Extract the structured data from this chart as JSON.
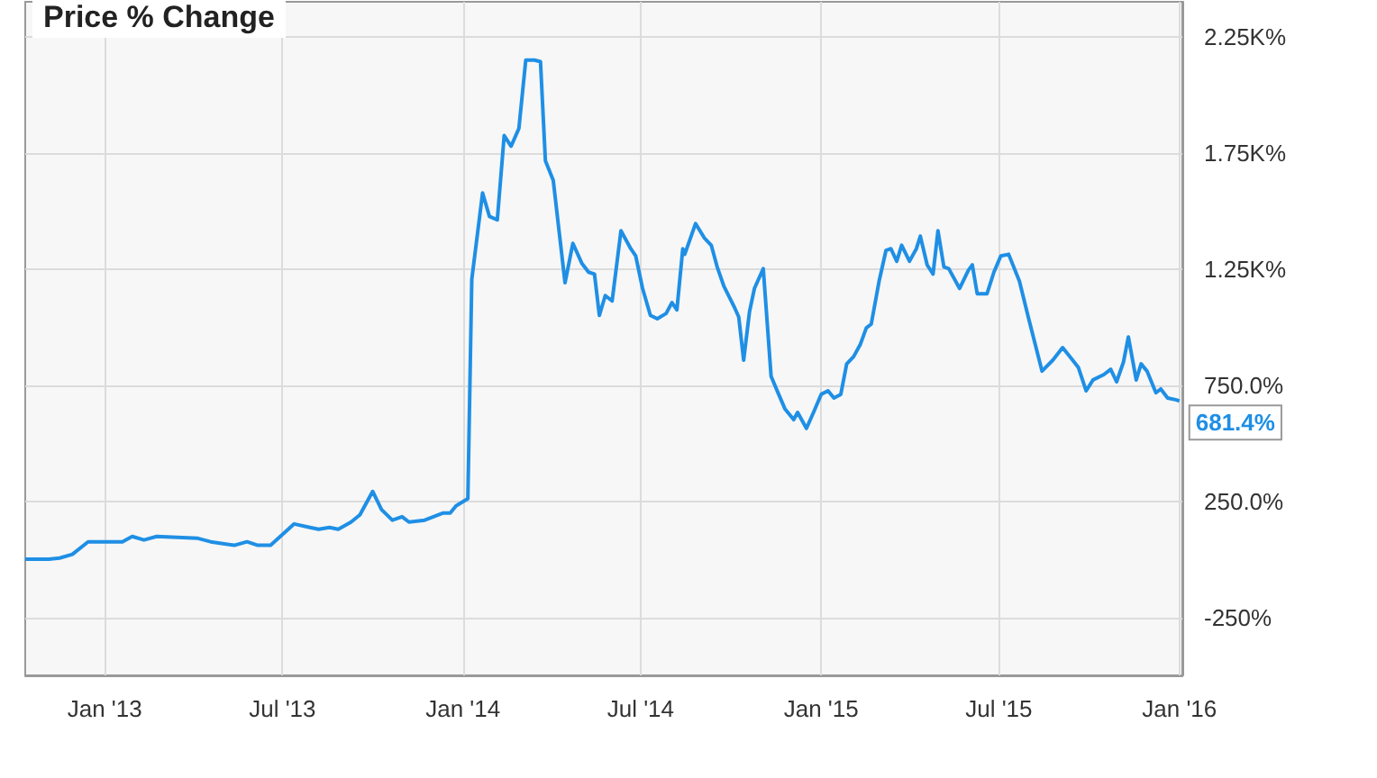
{
  "chart_data": {
    "type": "line",
    "title": "Price % Change",
    "x": [
      "2012-10-12",
      "2012-11-05",
      "2012-11-16",
      "2012-11-29",
      "2012-12-15",
      "2013-01-19",
      "2013-01-29",
      "2013-02-10",
      "2013-02-23",
      "2013-04-06",
      "2013-04-19",
      "2013-05-13",
      "2013-05-26",
      "2013-06-06",
      "2013-06-19",
      "2013-07-07",
      "2013-07-13",
      "2013-07-29",
      "2013-08-07",
      "2013-08-18",
      "2013-08-27",
      "2013-09-09",
      "2013-09-18",
      "2013-10-01",
      "2013-10-10",
      "2013-10-21",
      "2013-10-31",
      "2013-11-07",
      "2013-11-23",
      "2013-12-12",
      "2013-12-19",
      "2013-12-25",
      "2014-01-06",
      "2014-01-10",
      "2014-01-21",
      "2014-01-28",
      "2014-02-05",
      "2014-02-12",
      "2014-02-19",
      "2014-02-27",
      "2014-03-06",
      "2014-03-15",
      "2014-03-21",
      "2014-03-26",
      "2014-04-03",
      "2014-04-15",
      "2014-04-23",
      "2014-05-02",
      "2014-05-09",
      "2014-05-15",
      "2014-05-20",
      "2014-05-26",
      "2014-06-02",
      "2014-06-11",
      "2014-06-21",
      "2014-06-26",
      "2014-07-03",
      "2014-07-11",
      "2014-07-18",
      "2014-07-27",
      "2014-08-02",
      "2014-08-07",
      "2014-08-13",
      "2014-08-15",
      "2014-08-26",
      "2014-09-04",
      "2014-09-11",
      "2014-09-17",
      "2014-09-24",
      "2014-10-05",
      "2014-10-09",
      "2014-10-14",
      "2014-10-20",
      "2014-10-25",
      "2014-11-03",
      "2014-11-11",
      "2014-11-18",
      "2014-11-25",
      "2014-12-04",
      "2014-12-08",
      "2014-12-17",
      "2014-12-25",
      "2015-01-01",
      "2015-01-08",
      "2015-01-14",
      "2015-01-21",
      "2015-01-27",
      "2015-02-03",
      "2015-02-10",
      "2015-02-16",
      "2015-02-21",
      "2015-03-01",
      "2015-03-08",
      "2015-03-13",
      "2015-03-19",
      "2015-03-24",
      "2015-04-01",
      "2015-04-08",
      "2015-04-12",
      "2015-04-19",
      "2015-04-25",
      "2015-04-30",
      "2015-05-06",
      "2015-05-11",
      "2015-05-22",
      "2015-05-31",
      "2015-06-04",
      "2015-06-09",
      "2015-06-19",
      "2015-06-26",
      "2015-07-03",
      "2015-07-11",
      "2015-07-22",
      "2015-07-31",
      "2015-08-14",
      "2015-08-25",
      "2015-09-04",
      "2015-09-13",
      "2015-09-20",
      "2015-09-28",
      "2015-10-05",
      "2015-10-16",
      "2015-10-23",
      "2015-10-29",
      "2015-11-05",
      "2015-11-10",
      "2015-11-18",
      "2015-11-23",
      "2015-11-29",
      "2015-12-08",
      "2015-12-13",
      "2015-12-20",
      "2015-12-29",
      "2016-01-01"
    ],
    "series": [
      {
        "color": "#1f8fe5",
        "values": [
          0,
          0,
          5,
          21,
          75,
          75,
          98,
          83,
          98,
          90,
          75,
          60,
          75,
          60,
          60,
          129,
          152,
          137,
          129,
          137,
          129,
          160,
          191,
          292,
          214,
          168,
          183,
          160,
          168,
          199,
          199,
          230,
          261,
          1205,
          1577,
          1476,
          1461,
          1824,
          1778,
          1855,
          2149,
          2149,
          2142,
          1716,
          1631,
          1190,
          1360,
          1275,
          1236,
          1228,
          1050,
          1135,
          1112,
          1414,
          1337,
          1306,
          1166,
          1050,
          1035,
          1058,
          1105,
          1074,
          1337,
          1313,
          1445,
          1383,
          1352,
          1259,
          1174,
          1081,
          1043,
          857,
          1066,
          1166,
          1251,
          787,
          717,
          648,
          601,
          632,
          563,
          640,
          710,
          725,
          694,
          710,
          841,
          872,
          926,
          996,
          1012,
          1197,
          1329,
          1337,
          1283,
          1352,
          1283,
          1337,
          1391,
          1267,
          1228,
          1414,
          1259,
          1251,
          1166,
          1244,
          1267,
          1143,
          1143,
          1236,
          1306,
          1313,
          1197,
          1043,
          810,
          857,
          911,
          864,
          826,
          725,
          772,
          795,
          818,
          764,
          849,
          957,
          772,
          841,
          810,
          717,
          733,
          694,
          686,
          681.4
        ]
      }
    ],
    "annotations": [
      {
        "text": "681.4%",
        "x": "2016-01-01",
        "y": 681.4
      }
    ],
    "xlim": [
      "2012-10-12",
      "2016-01-04"
    ],
    "xticks": [
      {
        "value": "2013-01-01",
        "label": "Jan '13"
      },
      {
        "value": "2013-07-01",
        "label": "Jul '13"
      },
      {
        "value": "2014-01-01",
        "label": "Jan '14"
      },
      {
        "value": "2014-07-01",
        "label": "Jul '14"
      },
      {
        "value": "2015-01-01",
        "label": "Jan '15"
      },
      {
        "value": "2015-07-01",
        "label": "Jul '15"
      },
      {
        "value": "2016-01-01",
        "label": "Jan '16"
      }
    ],
    "ylim": [
      -500,
      2400
    ],
    "yticks": [
      {
        "value": -250,
        "label": "-250%"
      },
      {
        "value": 250,
        "label": "250.0%"
      },
      {
        "value": 750,
        "label": "750.0%"
      },
      {
        "value": 1250,
        "label": "1.25K%"
      },
      {
        "value": 1750,
        "label": "1.75K%"
      },
      {
        "value": 2250,
        "label": "2.25K%"
      }
    ],
    "grid": true,
    "marker": "none",
    "line_style": "solid"
  }
}
